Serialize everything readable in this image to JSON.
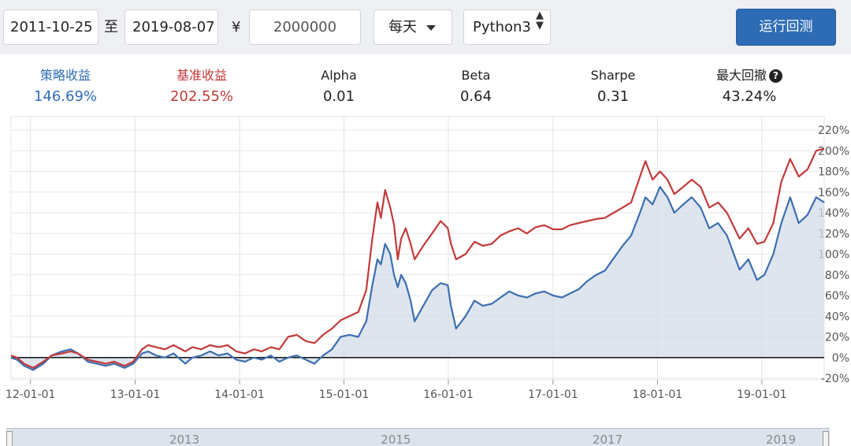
{
  "toolbar": {
    "start_date": "2011-10-25",
    "to_label": "至",
    "end_date": "2019-08-07",
    "currency_symbol": "¥",
    "capital": "2000000",
    "frequency": "每天",
    "language": "Python3",
    "run_button": "运行回测"
  },
  "stats": [
    {
      "title": "策略收益",
      "value": "146.69%",
      "color": "#2f6db5"
    },
    {
      "title": "基准收益",
      "value": "202.55%",
      "color": "#c23a3a"
    },
    {
      "title": "Alpha",
      "value": "0.01",
      "color": "#222222"
    },
    {
      "title": "Beta",
      "value": "0.64",
      "color": "#222222"
    },
    {
      "title": "Sharpe",
      "value": "0.31",
      "color": "#222222"
    },
    {
      "title": "最大回撤",
      "value": "43.24%",
      "color": "#222222"
    }
  ],
  "chart_data": {
    "type": "line",
    "title": "",
    "xlabel": "",
    "ylabel": "",
    "x_ticks": [
      "12-01-01",
      "13-01-01",
      "14-01-01",
      "15-01-01",
      "16-01-01",
      "17-01-01",
      "18-01-01",
      "19-01-01"
    ],
    "y_ticks": [
      "220%",
      "200%",
      "180%",
      "160%",
      "140%",
      "120%",
      "100%",
      "80%",
      "60%",
      "40%",
      "20%",
      "0%",
      "-20%"
    ],
    "ylim": [
      -20,
      220
    ],
    "xlim": [
      "2011-10-25",
      "2019-08-07"
    ],
    "grid": true,
    "series": [
      {
        "color": "#c23a3a",
        "fill": false,
        "points": [
          [
            "2011-10-25",
            2
          ],
          [
            "2011-11-15",
            0
          ],
          [
            "2011-12-10",
            -6
          ],
          [
            "2012-01-10",
            -10
          ],
          [
            "2012-02-15",
            -4
          ],
          [
            "2012-03-15",
            2
          ],
          [
            "2012-04-20",
            4
          ],
          [
            "2012-05-20",
            6
          ],
          [
            "2012-06-15",
            4
          ],
          [
            "2012-07-20",
            -2
          ],
          [
            "2012-08-20",
            -4
          ],
          [
            "2012-09-20",
            -6
          ],
          [
            "2012-10-20",
            -4
          ],
          [
            "2012-11-25",
            -8
          ],
          [
            "2012-12-25",
            -4
          ],
          [
            "2013-01-25",
            8
          ],
          [
            "2013-02-15",
            12
          ],
          [
            "2013-03-15",
            10
          ],
          [
            "2013-04-15",
            8
          ],
          [
            "2013-05-15",
            12
          ],
          [
            "2013-06-25",
            6
          ],
          [
            "2013-07-20",
            10
          ],
          [
            "2013-08-20",
            8
          ],
          [
            "2013-09-20",
            12
          ],
          [
            "2013-10-20",
            10
          ],
          [
            "2013-11-20",
            12
          ],
          [
            "2013-12-20",
            6
          ],
          [
            "2014-01-20",
            4
          ],
          [
            "2014-02-20",
            8
          ],
          [
            "2014-03-20",
            6
          ],
          [
            "2014-04-20",
            10
          ],
          [
            "2014-05-20",
            8
          ],
          [
            "2014-06-20",
            20
          ],
          [
            "2014-07-20",
            22
          ],
          [
            "2014-08-20",
            16
          ],
          [
            "2014-09-20",
            14
          ],
          [
            "2014-10-20",
            22
          ],
          [
            "2014-11-20",
            28
          ],
          [
            "2014-12-20",
            36
          ],
          [
            "2015-01-20",
            40
          ],
          [
            "2015-02-20",
            44
          ],
          [
            "2015-03-20",
            65
          ],
          [
            "2015-04-10",
            115
          ],
          [
            "2015-04-28",
            150
          ],
          [
            "2015-05-10",
            135
          ],
          [
            "2015-05-25",
            162
          ],
          [
            "2015-06-12",
            145
          ],
          [
            "2015-06-25",
            128
          ],
          [
            "2015-07-08",
            95
          ],
          [
            "2015-07-20",
            115
          ],
          [
            "2015-08-05",
            125
          ],
          [
            "2015-08-22",
            110
          ],
          [
            "2015-09-05",
            95
          ],
          [
            "2015-10-05",
            108
          ],
          [
            "2015-11-05",
            120
          ],
          [
            "2015-12-05",
            132
          ],
          [
            "2015-12-30",
            125
          ],
          [
            "2016-01-10",
            110
          ],
          [
            "2016-01-28",
            95
          ],
          [
            "2016-03-01",
            100
          ],
          [
            "2016-04-01",
            112
          ],
          [
            "2016-05-01",
            108
          ],
          [
            "2016-06-01",
            110
          ],
          [
            "2016-07-01",
            118
          ],
          [
            "2016-08-01",
            122
          ],
          [
            "2016-09-01",
            125
          ],
          [
            "2016-10-01",
            120
          ],
          [
            "2016-11-01",
            126
          ],
          [
            "2016-12-01",
            128
          ],
          [
            "2017-01-01",
            124
          ],
          [
            "2017-02-01",
            124
          ],
          [
            "2017-03-01",
            128
          ],
          [
            "2017-04-01",
            130
          ],
          [
            "2017-05-01",
            132
          ],
          [
            "2017-06-01",
            134
          ],
          [
            "2017-07-01",
            135
          ],
          [
            "2017-08-01",
            140
          ],
          [
            "2017-09-01",
            145
          ],
          [
            "2017-10-01",
            150
          ],
          [
            "2017-11-01",
            175
          ],
          [
            "2017-11-20",
            190
          ],
          [
            "2017-12-15",
            172
          ],
          [
            "2018-01-10",
            180
          ],
          [
            "2018-02-05",
            172
          ],
          [
            "2018-03-01",
            158
          ],
          [
            "2018-04-01",
            165
          ],
          [
            "2018-05-01",
            172
          ],
          [
            "2018-06-01",
            165
          ],
          [
            "2018-07-01",
            145
          ],
          [
            "2018-08-01",
            150
          ],
          [
            "2018-09-01",
            140
          ],
          [
            "2018-10-15",
            115
          ],
          [
            "2018-11-15",
            125
          ],
          [
            "2018-12-15",
            110
          ],
          [
            "2019-01-10",
            112
          ],
          [
            "2019-02-10",
            130
          ],
          [
            "2019-03-10",
            170
          ],
          [
            "2019-04-10",
            192
          ],
          [
            "2019-05-10",
            175
          ],
          [
            "2019-06-10",
            182
          ],
          [
            "2019-07-10",
            200
          ],
          [
            "2019-08-07",
            202
          ]
        ]
      },
      {
        "color": "#3d6fb0",
        "fill": true,
        "points": [
          [
            "2011-10-25",
            0
          ],
          [
            "2011-11-15",
            -2
          ],
          [
            "2011-12-10",
            -8
          ],
          [
            "2012-01-10",
            -12
          ],
          [
            "2012-02-15",
            -6
          ],
          [
            "2012-03-15",
            2
          ],
          [
            "2012-04-20",
            6
          ],
          [
            "2012-05-20",
            8
          ],
          [
            "2012-06-15",
            4
          ],
          [
            "2012-07-20",
            -4
          ],
          [
            "2012-08-20",
            -6
          ],
          [
            "2012-09-20",
            -8
          ],
          [
            "2012-10-20",
            -6
          ],
          [
            "2012-11-25",
            -10
          ],
          [
            "2012-12-25",
            -6
          ],
          [
            "2013-01-25",
            4
          ],
          [
            "2013-02-15",
            6
          ],
          [
            "2013-03-15",
            2
          ],
          [
            "2013-04-15",
            0
          ],
          [
            "2013-05-15",
            4
          ],
          [
            "2013-06-25",
            -6
          ],
          [
            "2013-07-20",
            0
          ],
          [
            "2013-08-20",
            2
          ],
          [
            "2013-09-20",
            6
          ],
          [
            "2013-10-20",
            2
          ],
          [
            "2013-11-20",
            4
          ],
          [
            "2013-12-20",
            -2
          ],
          [
            "2014-01-20",
            -4
          ],
          [
            "2014-02-20",
            0
          ],
          [
            "2014-03-20",
            -2
          ],
          [
            "2014-04-20",
            2
          ],
          [
            "2014-05-20",
            -4
          ],
          [
            "2014-06-20",
            0
          ],
          [
            "2014-07-20",
            2
          ],
          [
            "2014-08-20",
            -2
          ],
          [
            "2014-09-20",
            -6
          ],
          [
            "2014-10-20",
            2
          ],
          [
            "2014-11-20",
            8
          ],
          [
            "2014-12-20",
            20
          ],
          [
            "2015-01-20",
            22
          ],
          [
            "2015-02-20",
            20
          ],
          [
            "2015-03-20",
            35
          ],
          [
            "2015-04-10",
            70
          ],
          [
            "2015-04-28",
            95
          ],
          [
            "2015-05-10",
            90
          ],
          [
            "2015-05-25",
            110
          ],
          [
            "2015-06-12",
            100
          ],
          [
            "2015-06-25",
            80
          ],
          [
            "2015-07-08",
            68
          ],
          [
            "2015-07-20",
            80
          ],
          [
            "2015-08-05",
            72
          ],
          [
            "2015-08-22",
            55
          ],
          [
            "2015-09-05",
            35
          ],
          [
            "2015-10-05",
            50
          ],
          [
            "2015-11-05",
            65
          ],
          [
            "2015-12-05",
            72
          ],
          [
            "2015-12-30",
            70
          ],
          [
            "2016-01-10",
            50
          ],
          [
            "2016-01-28",
            28
          ],
          [
            "2016-03-01",
            40
          ],
          [
            "2016-04-01",
            55
          ],
          [
            "2016-05-01",
            50
          ],
          [
            "2016-06-01",
            52
          ],
          [
            "2016-07-01",
            58
          ],
          [
            "2016-08-01",
            64
          ],
          [
            "2016-09-01",
            60
          ],
          [
            "2016-10-01",
            58
          ],
          [
            "2016-11-01",
            62
          ],
          [
            "2016-12-01",
            64
          ],
          [
            "2017-01-01",
            60
          ],
          [
            "2017-02-01",
            58
          ],
          [
            "2017-03-01",
            62
          ],
          [
            "2017-04-01",
            66
          ],
          [
            "2017-05-01",
            74
          ],
          [
            "2017-06-01",
            80
          ],
          [
            "2017-07-01",
            84
          ],
          [
            "2017-08-01",
            96
          ],
          [
            "2017-09-01",
            108
          ],
          [
            "2017-10-01",
            118
          ],
          [
            "2017-11-01",
            140
          ],
          [
            "2017-11-20",
            155
          ],
          [
            "2017-12-15",
            148
          ],
          [
            "2018-01-10",
            165
          ],
          [
            "2018-02-05",
            155
          ],
          [
            "2018-03-01",
            140
          ],
          [
            "2018-04-01",
            148
          ],
          [
            "2018-05-01",
            155
          ],
          [
            "2018-06-01",
            145
          ],
          [
            "2018-07-01",
            125
          ],
          [
            "2018-08-01",
            130
          ],
          [
            "2018-09-01",
            118
          ],
          [
            "2018-10-15",
            85
          ],
          [
            "2018-11-15",
            95
          ],
          [
            "2018-12-15",
            75
          ],
          [
            "2019-01-10",
            80
          ],
          [
            "2019-02-10",
            100
          ],
          [
            "2019-03-10",
            130
          ],
          [
            "2019-04-10",
            155
          ],
          [
            "2019-05-10",
            130
          ],
          [
            "2019-06-10",
            138
          ],
          [
            "2019-07-10",
            155
          ],
          [
            "2019-08-07",
            150
          ]
        ]
      }
    ]
  },
  "navigator": {
    "labels": [
      "2013",
      "2015",
      "2017",
      "2019"
    ]
  }
}
